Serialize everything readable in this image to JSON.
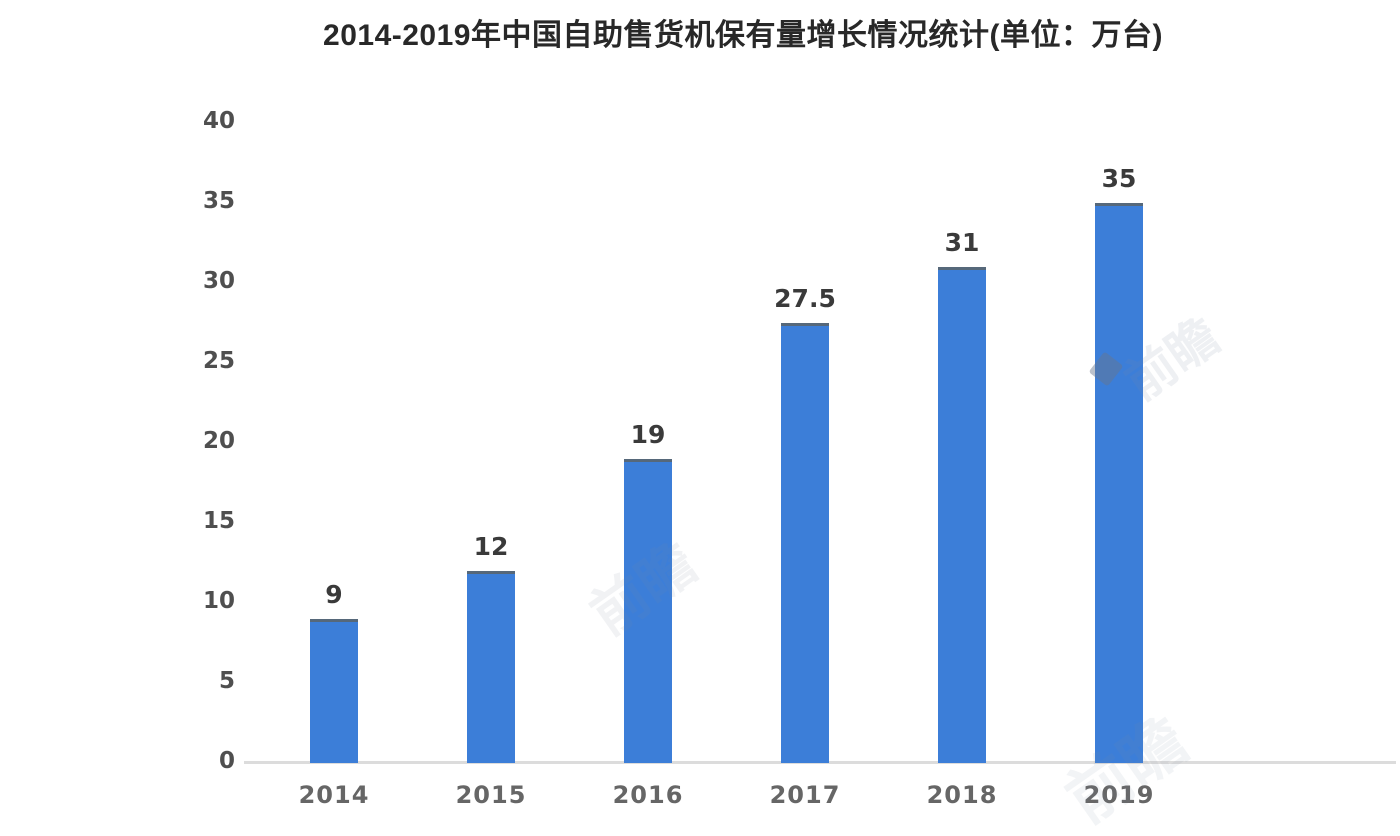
{
  "chart_data": {
    "type": "bar",
    "title": "2014-2019年中国自助售货机保有量增长情况统计(单位：万台)",
    "unit": "万台",
    "categories": [
      "2014",
      "2015",
      "2016",
      "2017",
      "2018",
      "2019"
    ],
    "values": [
      9,
      12,
      19,
      27.5,
      31,
      35
    ],
    "value_labels": [
      "9",
      "12",
      "19",
      "27.5",
      "31",
      "35"
    ],
    "yticks": [
      0,
      5,
      10,
      15,
      20,
      25,
      30,
      35,
      40
    ],
    "ylim": [
      0,
      40
    ],
    "xlabel": "",
    "ylabel": "",
    "grid": false,
    "legend": "none",
    "bar_color": "#3c7ed8",
    "bar_cap_color": "#56687a",
    "axis_line_color": "#dcdcdc",
    "title_color": "#282828",
    "tick_color": "#4f4f4f",
    "xlabel_color": "#666666",
    "value_label_color": "#3a3a3a"
  },
  "watermark": {
    "text": "前瞻"
  }
}
